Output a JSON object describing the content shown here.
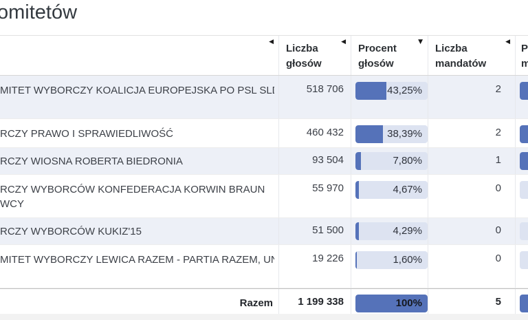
{
  "page": {
    "title_visible": "omitetów"
  },
  "icons": {
    "triangle_left": "◀",
    "triangle_down": "▼"
  },
  "table": {
    "columns": [
      {
        "line1": "",
        "line2": "",
        "sort": "triangle-left"
      },
      {
        "line1": "Liczba",
        "line2": "głosów",
        "sort": "triangle-left"
      },
      {
        "line1": "Procent",
        "line2": "głosów",
        "sort": "triangle-down"
      },
      {
        "line1": "Liczba",
        "line2": "mandatów",
        "sort": "triangle-left"
      },
      {
        "line1": "P",
        "line2": "m",
        "sort": "none"
      }
    ],
    "rows": [
      {
        "name_line1": "MITET WYBORCZY KOALICJA EUROPEJSKA PO PSL SLD .N",
        "name_line2": "",
        "votes": "518 706",
        "percent_label": "43,25%",
        "percent_value": 43.25,
        "mandates": "2",
        "mandate_percent_value": 40
      },
      {
        "name_line1": "RCZY PRAWO I SPRAWIEDLIWOŚĆ",
        "name_line2": "",
        "votes": "460 432",
        "percent_label": "38,39%",
        "percent_value": 38.39,
        "mandates": "2",
        "mandate_percent_value": 40
      },
      {
        "name_line1": "RCZY WIOSNA ROBERTA BIEDRONIA",
        "name_line2": "",
        "votes": "93 504",
        "percent_label": "7,80%",
        "percent_value": 7.8,
        "mandates": "1",
        "mandate_percent_value": 20
      },
      {
        "name_line1": "RCZY WYBORCÓW KONFEDERACJA KORWIN BRAUN",
        "name_line2": "WCY",
        "votes": "55 970",
        "percent_label": "4,67%",
        "percent_value": 4.67,
        "mandates": "0",
        "mandate_percent_value": 0
      },
      {
        "name_line1": "RCZY WYBORCÓW KUKIZ'15",
        "name_line2": "",
        "votes": "51 500",
        "percent_label": "4,29%",
        "percent_value": 4.29,
        "mandates": "0",
        "mandate_percent_value": 0
      },
      {
        "name_line1": "MITET WYBORCZY LEWICA RAZEM - PARTIA RAZEM, UNIA",
        "name_line2": "",
        "votes": "19 226",
        "percent_label": "1,60%",
        "percent_value": 1.6,
        "mandates": "0",
        "mandate_percent_value": 0
      }
    ],
    "totals": {
      "label": "Razem",
      "votes": "1 199 338",
      "percent_label": "100%",
      "percent_value": 100,
      "mandates": "5",
      "mandate_percent_value": 100
    }
  },
  "colors": {
    "bar_fill": "#5572b9",
    "bar_track": "#dde3f1",
    "row_alt": "#edf0f7"
  }
}
